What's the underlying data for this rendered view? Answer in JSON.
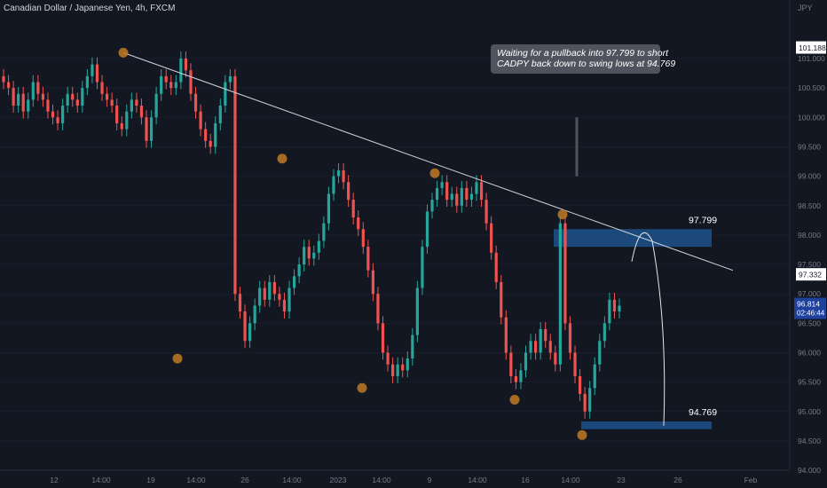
{
  "header": {
    "symbol_label": "Canadian Dollar / Japanese Yen, 4h, FXCM"
  },
  "annotation": {
    "line1": "Waiting for a pullback into 97.799 to short",
    "line2": "CADPY back down to swing lows at 94.769"
  },
  "price_axis": {
    "currency": "JPY",
    "ticks": [
      "101.000",
      "100.500",
      "100.000",
      "99.500",
      "99.000",
      "98.500",
      "98.000",
      "97.500",
      "97.000",
      "96.500",
      "96.000",
      "95.500",
      "95.000",
      "94.500",
      "94.000"
    ],
    "tag_top": "101.188",
    "tag_line": "97.332",
    "tag_last_price": "96.814",
    "tag_countdown": "02:46:44"
  },
  "time_axis": {
    "labels": [
      "12",
      "14:00",
      "19",
      "14:00",
      "26",
      "14:00",
      "2023",
      "14:00",
      "9",
      "14:00",
      "16",
      "14:00",
      "23",
      "26",
      "Feb"
    ]
  },
  "zones": [
    {
      "label": "97.799",
      "price_low": 97.8,
      "price_high": 98.1,
      "color": "#1e4f86"
    },
    {
      "label": "94.769",
      "price_low": 94.7,
      "price_high": 94.83,
      "color": "#1e4f86"
    }
  ],
  "colors": {
    "up": "#26a69a",
    "down": "#ef5350",
    "marker": "#c07a25",
    "trendline": "#d1d4dc",
    "background": "#131722"
  },
  "chart_data": {
    "type": "candlestick",
    "title": "Canadian Dollar / Japanese Yen, 4h, FXCM",
    "y_unit": "JPY",
    "ylim": [
      94.0,
      101.8
    ],
    "trendline": {
      "from": 101.1,
      "to": 97.4
    },
    "swing_points": [
      101.1,
      95.9,
      99.3,
      95.4,
      99.05,
      95.2,
      98.35,
      94.6
    ],
    "closes": [
      100.6,
      100.5,
      100.2,
      100.4,
      100.1,
      100.3,
      100.6,
      100.4,
      100.3,
      100.1,
      100.0,
      99.9,
      100.2,
      100.4,
      100.3,
      100.2,
      100.5,
      100.7,
      100.9,
      100.6,
      100.4,
      100.3,
      100.2,
      99.9,
      99.8,
      100.1,
      100.3,
      100.2,
      100.0,
      99.6,
      100.0,
      100.4,
      100.7,
      100.6,
      100.5,
      100.6,
      101.0,
      100.8,
      100.4,
      100.1,
      99.8,
      99.6,
      99.5,
      99.9,
      100.2,
      100.6,
      100.7,
      97.0,
      96.7,
      96.2,
      96.5,
      96.8,
      97.1,
      96.9,
      97.2,
      97.0,
      96.9,
      96.7,
      97.1,
      97.3,
      97.5,
      97.8,
      97.6,
      97.7,
      97.9,
      98.2,
      98.7,
      99.0,
      99.1,
      98.9,
      98.6,
      98.3,
      98.1,
      97.8,
      97.4,
      97.0,
      96.5,
      96.0,
      95.8,
      95.6,
      95.8,
      95.7,
      95.9,
      96.3,
      97.1,
      97.8,
      98.4,
      98.6,
      98.8,
      98.9,
      98.6,
      98.7,
      98.5,
      98.8,
      98.6,
      98.7,
      98.9,
      98.6,
      98.2,
      97.7,
      97.2,
      96.6,
      96.0,
      95.6,
      95.5,
      95.7,
      96.0,
      96.2,
      96.0,
      96.4,
      96.2,
      96.0,
      95.8,
      98.2,
      96.5,
      96.0,
      95.6,
      95.3,
      95.0,
      95.4,
      95.8,
      96.2,
      96.5,
      96.9,
      96.7,
      96.8
    ]
  }
}
